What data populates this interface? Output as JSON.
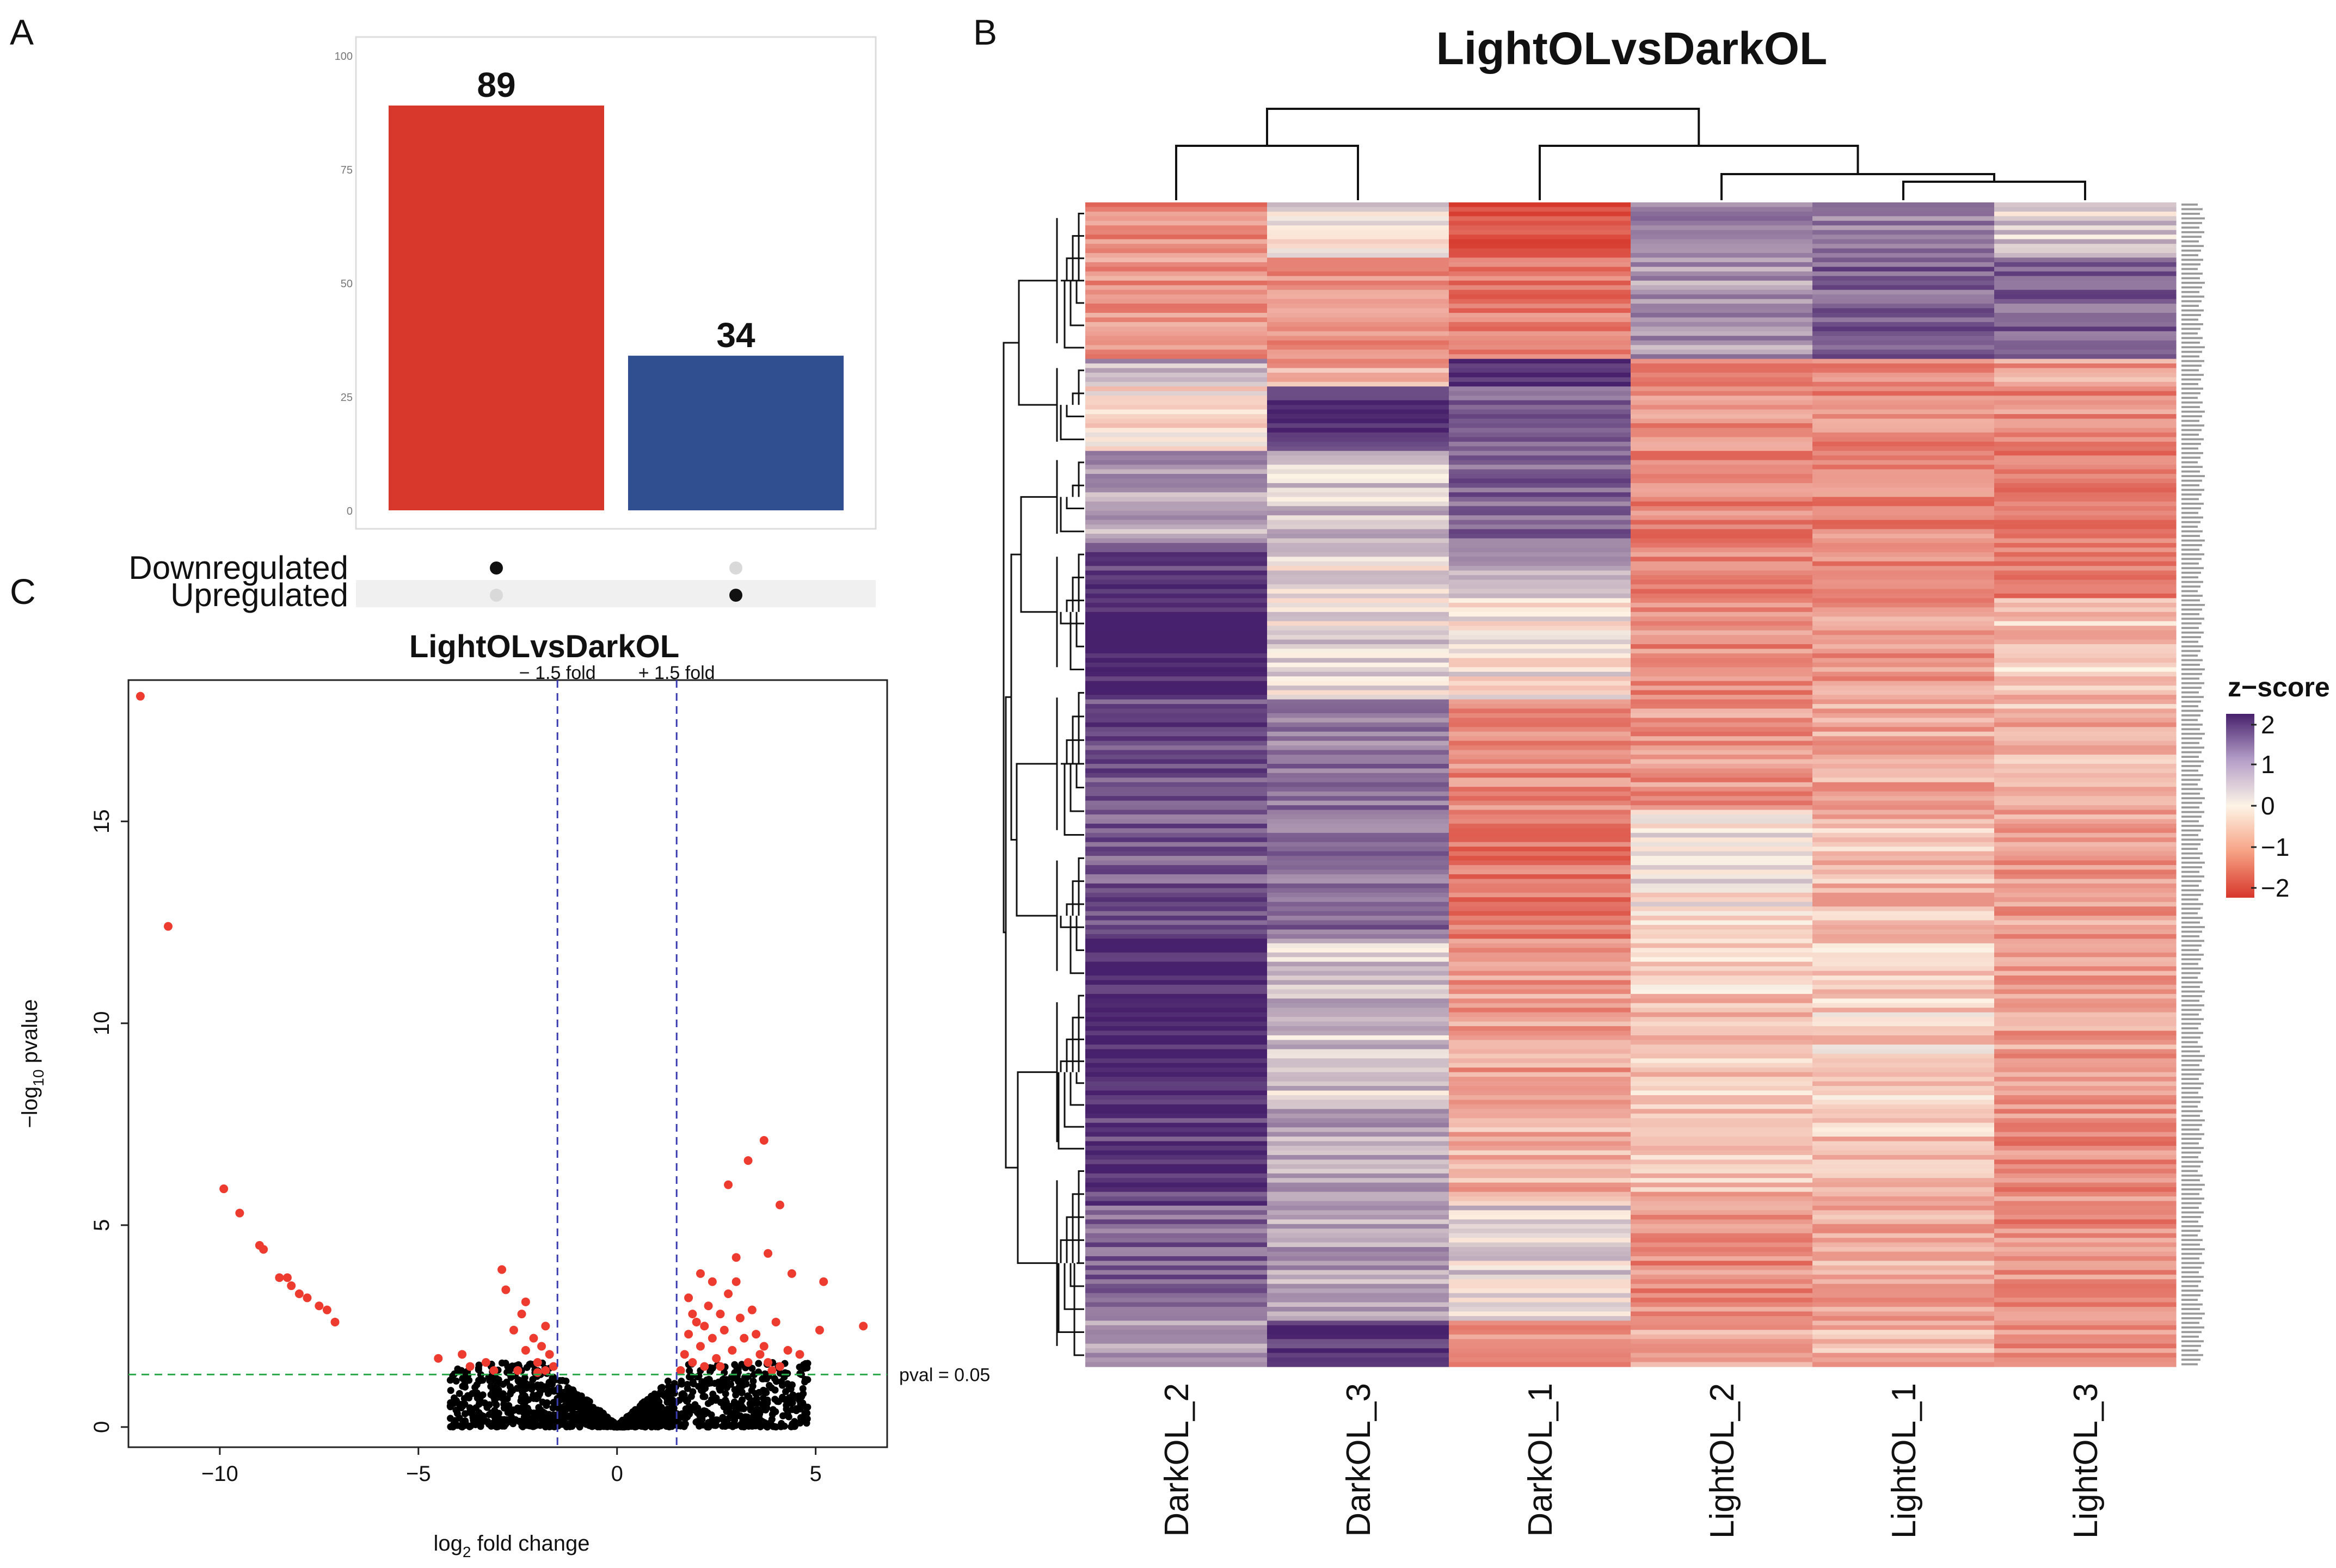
{
  "panels": {
    "a": "A",
    "b": "B",
    "c": "C"
  },
  "chart_data": [
    {
      "type": "bar",
      "panel": "A",
      "categories": [
        "Downregulated",
        "Upregulated"
      ],
      "values": [
        89,
        34
      ],
      "value_labels": [
        "89",
        "34"
      ],
      "colors": [
        "#d8372b",
        "#2f4f90"
      ],
      "ylim": [
        0,
        100
      ],
      "yticks": [
        0,
        25,
        50,
        75,
        100
      ],
      "ytick_labels": [
        "0",
        "25",
        "50",
        "75",
        "100"
      ],
      "matrix_rows": [
        "Downregulated",
        "Upregulated"
      ],
      "matrix": [
        [
          true,
          false
        ],
        [
          false,
          true
        ]
      ]
    },
    {
      "type": "heatmap",
      "panel": "B",
      "title": "LightOLvsDarkOL",
      "columns": [
        "DarkOL_2",
        "DarkOL_3",
        "DarkOL_1",
        "LightOL_2",
        "LightOL_1",
        "LightOL_3"
      ],
      "n_rows": 253,
      "legend_title": "z−score",
      "legend_ticks": [
        "2",
        "1",
        "0",
        "−1",
        "−2"
      ],
      "colors": {
        "high": "#47216c",
        "mid": "#fdf4e6",
        "low": "#d7372b"
      },
      "blocks": [
        {
          "rows": 12,
          "z": [
            -1.0,
            0.1,
            -1.8,
            1.0,
            1.0,
            0.3
          ]
        },
        {
          "rows": 22,
          "z": [
            -0.9,
            -1.0,
            -1.2,
            0.8,
            1.3,
            1.3
          ]
        },
        {
          "rows": 6,
          "z": [
            0.6,
            -0.7,
            2.0,
            -1.0,
            -1.0,
            -0.8
          ]
        },
        {
          "rows": 14,
          "z": [
            -0.2,
            1.9,
            1.2,
            -1.0,
            -1.0,
            -1.0
          ]
        },
        {
          "rows": 20,
          "z": [
            0.7,
            0.4,
            1.3,
            -1.1,
            -1.1,
            -1.1
          ]
        },
        {
          "rows": 12,
          "z": [
            1.6,
            0.2,
            0.6,
            -1.1,
            -1.0,
            -1.2
          ]
        },
        {
          "rows": 22,
          "z": [
            2.0,
            0.2,
            0.0,
            -1.0,
            -0.9,
            -0.4
          ]
        },
        {
          "rows": 24,
          "z": [
            1.5,
            1.1,
            -1.0,
            -0.9,
            -0.7,
            -0.6
          ]
        },
        {
          "rows": 28,
          "z": [
            1.4,
            1.2,
            -1.2,
            0.0,
            -0.5,
            -0.8
          ]
        },
        {
          "rows": 34,
          "z": [
            2.0,
            0.4,
            -0.8,
            -0.4,
            -0.3,
            -0.8
          ]
        },
        {
          "rows": 24,
          "z": [
            1.7,
            0.6,
            -0.6,
            -0.5,
            -0.4,
            -1.0
          ]
        },
        {
          "rows": 25,
          "z": [
            1.3,
            0.7,
            0.2,
            -1.0,
            -0.7,
            -1.0
          ]
        },
        {
          "rows": 10,
          "z": [
            0.6,
            1.8,
            -0.8,
            -0.7,
            -0.6,
            -1.0
          ]
        }
      ]
    },
    {
      "type": "scatter",
      "panel": "C",
      "title": "LightOLvsDarkOL",
      "xlabel_main": "log",
      "xlabel_sub": "2",
      "xlabel_rest": " fold change",
      "ylabel_main": "−log",
      "ylabel_sub": "10",
      "ylabel_rest": " pvalue",
      "xlim": [
        -12.3,
        6.8
      ],
      "ylim": [
        -0.5,
        18.5
      ],
      "xticks": [
        -10,
        -5,
        0,
        5
      ],
      "xtick_labels": [
        "−10",
        "−5",
        "0",
        "5"
      ],
      "yticks": [
        0,
        5,
        10,
        15
      ],
      "ytick_labels": [
        "0",
        "5",
        "10",
        "15"
      ],
      "fold_lines": [
        -1.5,
        1.5
      ],
      "fold_labels": [
        "− 1.5 fold",
        "+ 1.5 fold"
      ],
      "pval_line": 1.3,
      "pval_label": "pval = 0.05",
      "significant_points": [
        [
          -12.0,
          18.1
        ],
        [
          -11.3,
          12.4
        ],
        [
          -9.9,
          5.9
        ],
        [
          -9.5,
          5.3
        ],
        [
          -9.0,
          4.5
        ],
        [
          -8.9,
          4.4
        ],
        [
          -8.5,
          3.7
        ],
        [
          -8.3,
          3.7
        ],
        [
          -8.2,
          3.5
        ],
        [
          -8.0,
          3.3
        ],
        [
          -7.8,
          3.2
        ],
        [
          -7.5,
          3.0
        ],
        [
          -7.3,
          2.9
        ],
        [
          -7.1,
          2.6
        ],
        [
          -4.5,
          1.7
        ],
        [
          -3.9,
          1.8
        ],
        [
          -3.7,
          1.5
        ],
        [
          -3.3,
          1.6
        ],
        [
          -3.1,
          1.4
        ],
        [
          -2.9,
          3.9
        ],
        [
          -2.8,
          3.4
        ],
        [
          -2.6,
          2.4
        ],
        [
          -2.4,
          2.8
        ],
        [
          -2.3,
          3.1
        ],
        [
          -2.3,
          1.9
        ],
        [
          -2.1,
          2.2
        ],
        [
          -2.0,
          1.6
        ],
        [
          -1.9,
          2.0
        ],
        [
          -1.8,
          2.5
        ],
        [
          -1.7,
          1.8
        ],
        [
          -1.6,
          1.5
        ],
        [
          -2.5,
          1.4
        ],
        [
          -2.0,
          1.35
        ],
        [
          -1.8,
          1.4
        ],
        [
          1.6,
          1.4
        ],
        [
          1.7,
          1.8
        ],
        [
          1.8,
          2.3
        ],
        [
          1.9,
          1.6
        ],
        [
          2.0,
          2.6
        ],
        [
          2.1,
          2.0
        ],
        [
          2.2,
          1.5
        ],
        [
          2.3,
          3.0
        ],
        [
          2.4,
          2.2
        ],
        [
          2.5,
          1.7
        ],
        [
          2.6,
          2.8
        ],
        [
          2.7,
          2.4
        ],
        [
          2.8,
          3.3
        ],
        [
          2.9,
          1.9
        ],
        [
          3.0,
          3.6
        ],
        [
          3.1,
          2.7
        ],
        [
          3.2,
          2.2
        ],
        [
          3.3,
          1.6
        ],
        [
          3.4,
          2.9
        ],
        [
          3.5,
          2.3
        ],
        [
          3.6,
          1.8
        ],
        [
          3.7,
          2.0
        ],
        [
          3.8,
          1.6
        ],
        [
          3.9,
          1.4
        ],
        [
          4.0,
          2.6
        ],
        [
          4.1,
          1.5
        ],
        [
          4.3,
          1.9
        ],
        [
          4.4,
          3.8
        ],
        [
          4.6,
          1.8
        ],
        [
          5.1,
          2.4
        ],
        [
          5.2,
          3.6
        ],
        [
          6.2,
          2.5
        ],
        [
          2.8,
          6.0
        ],
        [
          3.3,
          6.6
        ],
        [
          3.7,
          7.1
        ],
        [
          4.1,
          5.5
        ],
        [
          3.8,
          4.3
        ],
        [
          2.4,
          3.6
        ],
        [
          1.8,
          3.2
        ],
        [
          2.1,
          3.8
        ],
        [
          3.0,
          4.2
        ],
        [
          2.6,
          1.5
        ],
        [
          1.9,
          2.8
        ],
        [
          2.2,
          2.5
        ]
      ],
      "ns_points_count": 1300
    }
  ]
}
